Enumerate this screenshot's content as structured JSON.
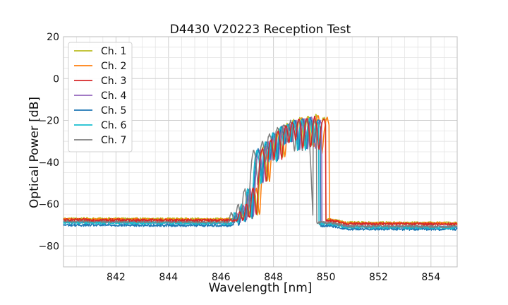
{
  "chart_data": {
    "type": "line",
    "title": "D4430 V20223 Reception Test",
    "xlabel": "Wavelength [nm]",
    "ylabel": "Optical Power [dB]",
    "xlim": [
      840.0,
      855.0
    ],
    "ylim": [
      -90,
      20
    ],
    "xticks": [
      842,
      844,
      846,
      848,
      850,
      852,
      854
    ],
    "xtick_labels": [
      "842",
      "844",
      "846",
      "848",
      "850",
      "852",
      "854"
    ],
    "yticks": [
      20,
      0,
      -20,
      -40,
      -60,
      -80
    ],
    "ytick_labels": [
      "20",
      "0",
      "−20",
      "−40",
      "−60",
      "−80"
    ],
    "grid": true,
    "legend_position": "top-left",
    "series": [
      {
        "name": "Ch. 1",
        "color": "#bcbd22",
        "floor_left": -67.0,
        "floor_right": -67.5,
        "shift": 0.16,
        "peak": -17.5,
        "edge_lo": 847.3,
        "edge_hi": 849.95
      },
      {
        "name": "Ch. 2",
        "color": "#ff7f0e",
        "floor_left": -67.3,
        "floor_right": -67.8,
        "shift": 0.24,
        "peak": -18.0,
        "edge_lo": 847.35,
        "edge_hi": 850.05
      },
      {
        "name": "Ch. 3",
        "color": "#d62728",
        "floor_left": -67.5,
        "floor_right": -68.0,
        "shift": 0.12,
        "peak": -18.5,
        "edge_lo": 847.3,
        "edge_hi": 849.95
      },
      {
        "name": "Ch. 4",
        "color": "#9467bd",
        "floor_left": -68.5,
        "floor_right": -69.5,
        "shift": 0.0,
        "peak": -19.0,
        "edge_lo": 847.2,
        "edge_hi": 849.85
      },
      {
        "name": "Ch. 5",
        "color": "#1f77b4",
        "floor_left": -70.0,
        "floor_right": -70.5,
        "shift": -0.04,
        "peak": -19.0,
        "edge_lo": 847.15,
        "edge_hi": 849.8
      },
      {
        "name": "Ch. 6",
        "color": "#17becf",
        "floor_left": -68.8,
        "floor_right": -69.8,
        "shift": -0.08,
        "peak": -19.5,
        "edge_lo": 847.05,
        "edge_hi": 849.75
      },
      {
        "name": "Ch. 7",
        "color": "#7f7f7f",
        "floor_left": -68.2,
        "floor_right": -69.2,
        "shift": -0.2,
        "peak": -19.5,
        "edge_lo": 846.95,
        "edge_hi": 849.7
      }
    ]
  }
}
